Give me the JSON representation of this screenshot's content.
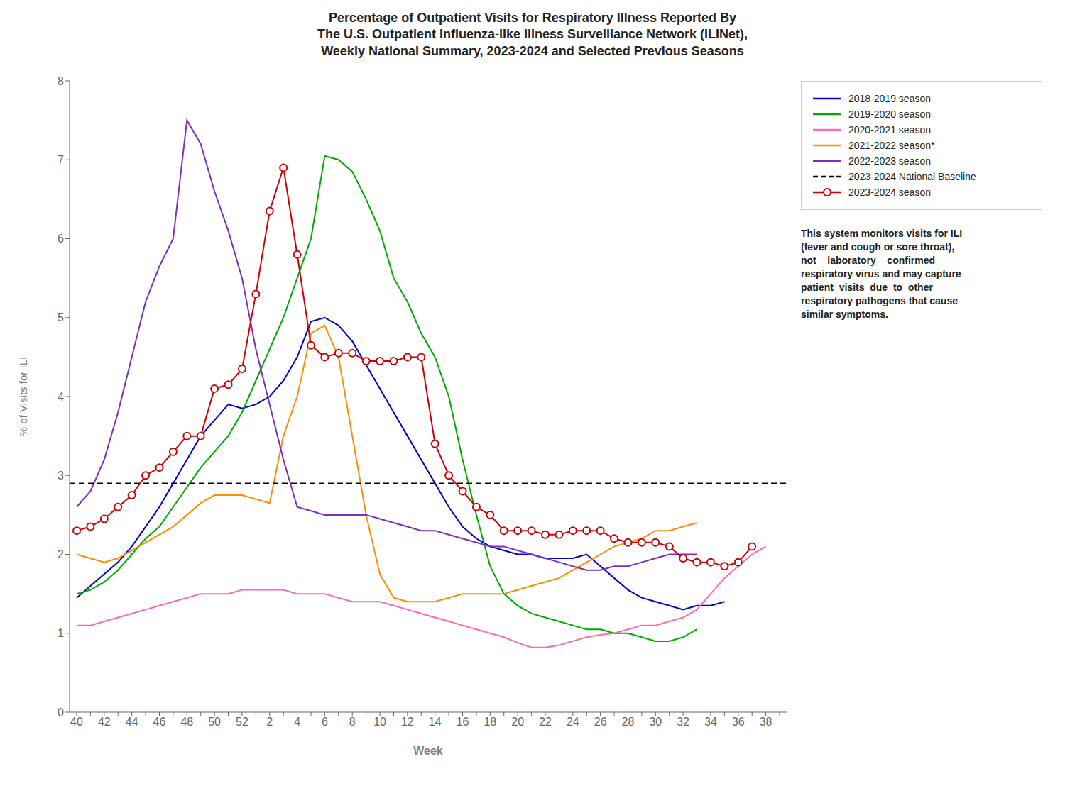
{
  "chart_data": {
    "type": "line",
    "title": "Percentage of Outpatient Visits for Respiratory Illness Reported By\nThe U.S. Outpatient Influenza-like Illness Surveillance Network (ILINet),\nWeekly National Summary, 2023-2024 and Selected Previous Seasons",
    "x_label": "Week",
    "y_label": "% of Visits for ILI",
    "annotation": "This system monitors visits for ILI\n(fever and cough or sore throat),\nnot    laboratory    confirmed\nrespiratory virus and may capture\npatient  visits  due  to  other\nrespiratory pathogens that cause\nsimilar symptoms.",
    "categories": [
      "40",
      null,
      "42",
      null,
      "44",
      null,
      "46",
      null,
      "48",
      null,
      "50",
      null,
      "52",
      null,
      "2",
      null,
      "4",
      null,
      "6",
      null,
      "8",
      null,
      "10",
      null,
      "12",
      null,
      "14",
      null,
      "16",
      null,
      "18",
      null,
      "20",
      null,
      "22",
      null,
      "24",
      null,
      "26",
      null,
      "28",
      null,
      "30",
      null,
      "32",
      null,
      "34",
      null,
      "36",
      null,
      "38",
      null
    ],
    "ylim": [
      0,
      8
    ],
    "yticks": [
      0,
      1,
      2,
      3,
      4,
      5,
      6,
      7,
      8
    ],
    "grid": false,
    "legend": "right",
    "series": [
      {
        "name": "2018-2019 season",
        "color": "#0000cc",
        "values": [
          1.45,
          1.6,
          1.75,
          1.9,
          2.1,
          2.35,
          2.6,
          2.9,
          3.2,
          3.5,
          3.7,
          3.9,
          3.85,
          3.9,
          4.0,
          4.2,
          4.5,
          4.95,
          5.0,
          4.9,
          4.7,
          4.4,
          4.1,
          3.8,
          3.5,
          3.2,
          2.9,
          2.6,
          2.35,
          2.2,
          2.1,
          2.05,
          2.0,
          2.0,
          1.95,
          1.95,
          1.95,
          2.0,
          1.85,
          1.7,
          1.55,
          1.45,
          1.4,
          1.35,
          1.3,
          1.35,
          1.35,
          1.4,
          null,
          null,
          null,
          null
        ]
      },
      {
        "name": "2019-2020 season",
        "color": "#00aa00",
        "values": [
          1.5,
          1.55,
          1.65,
          1.8,
          2.0,
          2.2,
          2.35,
          2.6,
          2.85,
          3.1,
          3.3,
          3.5,
          3.8,
          4.2,
          4.6,
          5.0,
          5.5,
          6.0,
          7.05,
          7.0,
          6.85,
          6.5,
          6.1,
          5.5,
          5.2,
          4.8,
          4.5,
          4.0,
          3.2,
          2.5,
          1.85,
          1.5,
          1.35,
          1.25,
          1.2,
          1.15,
          1.1,
          1.05,
          1.05,
          1.0,
          1.0,
          0.95,
          0.9,
          0.9,
          0.95,
          1.05,
          null,
          null,
          null,
          null,
          null,
          null
        ]
      },
      {
        "name": "2020-2021 season",
        "color": "#ff69b4",
        "values": [
          1.1,
          1.1,
          1.15,
          1.2,
          1.25,
          1.3,
          1.35,
          1.4,
          1.45,
          1.5,
          1.5,
          1.5,
          1.55,
          1.55,
          1.55,
          1.55,
          1.5,
          1.5,
          1.5,
          1.45,
          1.4,
          1.4,
          1.4,
          1.35,
          1.3,
          1.25,
          1.2,
          1.15,
          1.1,
          1.05,
          1.0,
          0.95,
          0.88,
          0.82,
          0.82,
          0.85,
          0.9,
          0.95,
          0.98,
          1.0,
          1.05,
          1.1,
          1.1,
          1.15,
          1.2,
          1.3,
          1.5,
          1.7,
          1.85,
          2.0,
          2.1,
          null
        ]
      },
      {
        "name": "2021-2022 season*",
        "color": "#ff8c00",
        "values": [
          2.0,
          1.95,
          1.9,
          1.95,
          2.05,
          2.15,
          2.25,
          2.35,
          2.5,
          2.65,
          2.75,
          2.75,
          2.75,
          2.7,
          2.65,
          3.5,
          4.0,
          4.8,
          4.9,
          4.5,
          3.5,
          2.5,
          1.75,
          1.45,
          1.4,
          1.4,
          1.4,
          1.45,
          1.5,
          1.5,
          1.5,
          1.5,
          1.55,
          1.6,
          1.65,
          1.7,
          1.8,
          1.9,
          2.0,
          2.1,
          2.15,
          2.2,
          2.3,
          2.3,
          2.35,
          2.4,
          null,
          null,
          null,
          null,
          null,
          null
        ]
      },
      {
        "name": "2022-2023 season",
        "color": "#7b2fbe",
        "values": [
          2.6,
          2.8,
          3.2,
          3.8,
          4.5,
          5.2,
          5.65,
          6.0,
          7.5,
          7.2,
          6.6,
          6.1,
          5.5,
          4.6,
          3.9,
          3.2,
          2.6,
          2.55,
          2.5,
          2.5,
          2.5,
          2.5,
          2.45,
          2.4,
          2.35,
          2.3,
          2.3,
          2.25,
          2.2,
          2.15,
          2.1,
          2.1,
          2.05,
          2.0,
          1.95,
          1.9,
          1.85,
          1.8,
          1.8,
          1.85,
          1.85,
          1.9,
          1.95,
          2.0,
          2.0,
          2.0,
          null,
          null,
          null,
          null,
          null,
          null
        ]
      },
      {
        "name": "2023-2024 National Baseline",
        "type": "hline",
        "color": "#000000",
        "line_style": "dashed",
        "value": 2.9
      },
      {
        "name": "2023-2024 season",
        "color": "#cc0000",
        "marker": "circle",
        "values": [
          2.3,
          2.35,
          2.45,
          2.6,
          2.75,
          3.0,
          3.1,
          3.3,
          3.5,
          3.5,
          4.1,
          4.15,
          4.35,
          5.3,
          6.35,
          6.9,
          5.8,
          4.65,
          4.5,
          4.55,
          4.55,
          4.45,
          4.45,
          4.45,
          4.5,
          4.5,
          3.4,
          3.0,
          2.8,
          2.6,
          2.5,
          2.3,
          2.3,
          2.3,
          2.25,
          2.25,
          2.3,
          2.3,
          2.3,
          2.2,
          2.15,
          2.15,
          2.15,
          2.1,
          1.95,
          1.9,
          1.9,
          1.85,
          1.9,
          2.1,
          null,
          null
        ]
      }
    ]
  }
}
